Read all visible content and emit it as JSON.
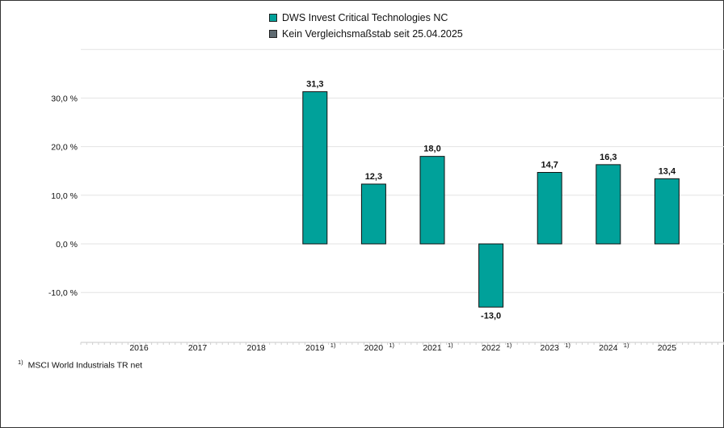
{
  "legend": {
    "items": [
      {
        "label": "DWS Invest Critical Technologies NC",
        "color": "#00A19A"
      },
      {
        "label": "Kein Vergleichsmaßstab seit 25.04.2025",
        "color": "#5E6A71"
      }
    ]
  },
  "footnote": {
    "mark": "1)",
    "text": "MSCI World Industrials TR net"
  },
  "chart_data": {
    "type": "bar",
    "categories": [
      "2016",
      "2017",
      "2018",
      "2019",
      "2020",
      "2021",
      "2022",
      "2023",
      "2024",
      "2025"
    ],
    "category_marks": [
      "",
      "",
      "",
      "1)",
      "1)",
      "1)",
      "1)",
      "1)",
      "1)",
      ""
    ],
    "series": [
      {
        "name": "DWS Invest Critical Technologies NC",
        "color": "#00A19A",
        "values": [
          null,
          null,
          null,
          31.3,
          12.3,
          18.0,
          -13.0,
          14.7,
          16.3,
          13.4
        ],
        "labels": [
          "",
          "",
          "",
          "31,3",
          "12,3",
          "18,0",
          "-13,0",
          "14,7",
          "16,3",
          "13,4"
        ]
      }
    ],
    "y_ticks": [
      -10,
      0,
      10,
      20,
      30
    ],
    "y_tick_labels": [
      "-10,0 %",
      "0,0 %",
      "10,0 %",
      "20,0 %",
      "30,0 %"
    ],
    "ylim": [
      -20,
      40
    ],
    "grid": true,
    "legend_position": "top-center"
  }
}
